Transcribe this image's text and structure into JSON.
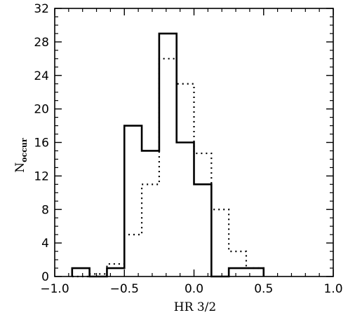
{
  "chart_data": {
    "type": "histogram",
    "xlabel": "HR 3/2",
    "ylabel": "N",
    "ylabel_subscript": "occur",
    "xlim": [
      -1.0,
      1.0
    ],
    "ylim": [
      0,
      32
    ],
    "xticks": [
      -1.0,
      -0.5,
      0.0,
      0.5,
      1.0
    ],
    "xtick_labels": [
      "−1.0",
      "−0.5",
      "0.0",
      "0.5",
      "1.0"
    ],
    "yticks": [
      0,
      4,
      8,
      12,
      16,
      20,
      24,
      28,
      32
    ],
    "ytick_labels": [
      "0",
      "4",
      "8",
      "12",
      "16",
      "20",
      "24",
      "28",
      "32"
    ],
    "grid": false,
    "bin_edges": [
      -0.875,
      -0.75,
      -0.625,
      -0.5,
      -0.375,
      -0.25,
      -0.125,
      0.0,
      0.125,
      0.25,
      0.375,
      0.5
    ],
    "series": [
      {
        "style": "solid",
        "color": "#000000",
        "values": [
          1,
          0,
          1,
          18,
          15,
          29,
          16,
          11,
          0,
          1,
          1
        ]
      },
      {
        "style": "dotted",
        "color": "#000000",
        "values": [
          0,
          0.3,
          1.5,
          5,
          11,
          26,
          23,
          14.7,
          8,
          3,
          1
        ]
      }
    ]
  }
}
